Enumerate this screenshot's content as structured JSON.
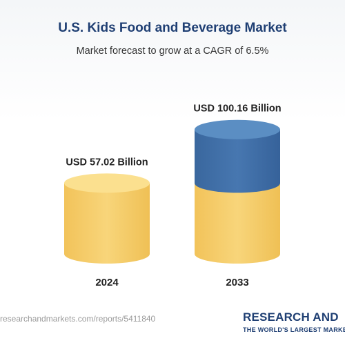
{
  "colors": {
    "title": "#1f3f73",
    "gold_top": "#fbe08f",
    "gold_body": "#f6ce66",
    "blue_top": "#5b8ec3",
    "blue_body": "#3f6fa8",
    "label": "#222222"
  },
  "chart_data": {
    "type": "bar",
    "title": "U.S. Kids Food and Beverage Market",
    "subtitle": "Market forecast to grow at a CAGR of 6.5%",
    "categories": [
      "2024",
      "2033"
    ],
    "values": [
      57.02,
      100.16
    ],
    "value_labels": [
      "USD 57.02 Billion",
      "USD 100.16 Billion"
    ],
    "ylim": [
      0,
      110
    ],
    "grid": false
  },
  "footer": {
    "url": "researchandmarkets.com/reports/5411840",
    "brand_main": "RESEARCH AND",
    "brand_accent": "",
    "brand_tagline": "THE WORLD'S LARGEST MARKET RESEARCH STORE"
  }
}
